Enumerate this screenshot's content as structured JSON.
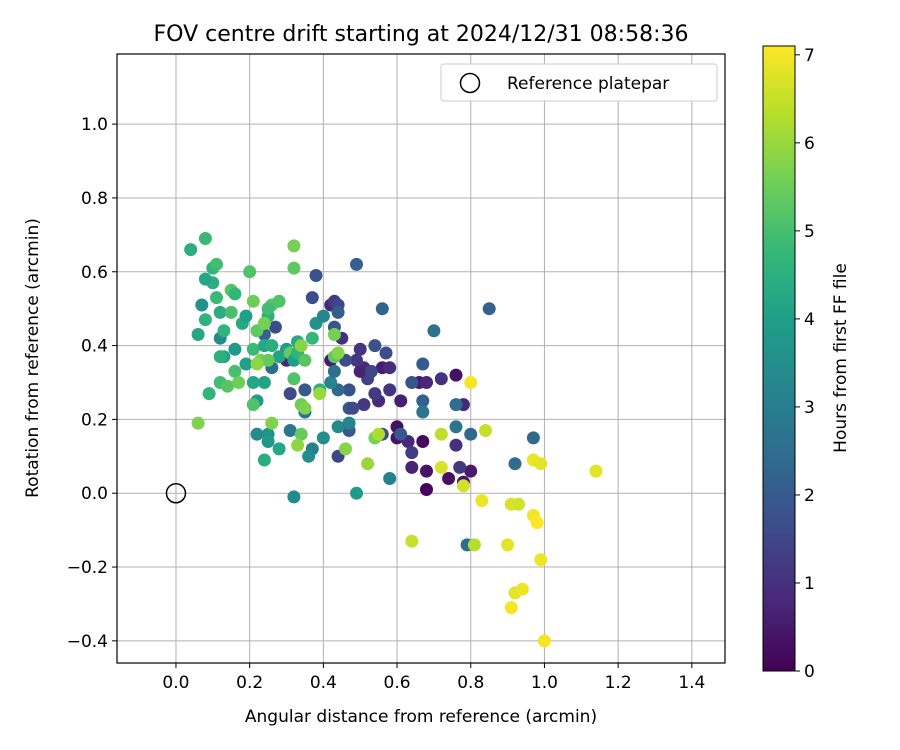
{
  "chart_data": {
    "type": "scatter",
    "title": "FOV centre drift starting at 2024/12/31 08:58:36",
    "xlabel": "Angular distance from reference (arcmin)",
    "ylabel": "Rotation from reference (arcmin)",
    "xlim": [
      -0.16,
      1.49
    ],
    "ylim": [
      -0.46,
      1.19
    ],
    "xticks": [
      0.0,
      0.2,
      0.4,
      0.6,
      0.8,
      1.0,
      1.2,
      1.4
    ],
    "xtick_labels": [
      "0.0",
      "0.2",
      "0.4",
      "0.6",
      "0.8",
      "1.0",
      "1.2",
      "1.4"
    ],
    "yticks": [
      -0.4,
      -0.2,
      0.0,
      0.2,
      0.4,
      0.6,
      0.8,
      1.0
    ],
    "ytick_labels": [
      "−0.4",
      "−0.2",
      "0.0",
      "0.2",
      "0.4",
      "0.6",
      "0.8",
      "1.0"
    ],
    "grid": true,
    "legend": {
      "placement": "top-right",
      "entries": [
        "Reference platepar"
      ]
    },
    "reference_point": {
      "name": "Reference platepar",
      "x": 0.0,
      "y": 0.0
    },
    "colorbar": {
      "label": "Hours from first FF file",
      "colormap": "viridis",
      "range": [
        0,
        7.1
      ],
      "ticks": [
        0,
        1,
        2,
        3,
        4,
        5,
        6,
        7
      ],
      "tick_labels": [
        "0",
        "1",
        "2",
        "3",
        "4",
        "5",
        "6",
        "7"
      ]
    },
    "points": [
      {
        "x": 0.68,
        "y": 0.01,
        "h": 0.1
      },
      {
        "x": 0.67,
        "y": 0.14,
        "h": 0.2
      },
      {
        "x": 0.74,
        "y": 0.04,
        "h": 0.3
      },
      {
        "x": 0.78,
        "y": 0.03,
        "h": 0.4
      },
      {
        "x": 0.8,
        "y": 0.06,
        "h": 0.5
      },
      {
        "x": 0.68,
        "y": 0.06,
        "h": 0.4
      },
      {
        "x": 0.64,
        "y": 0.07,
        "h": 0.7
      },
      {
        "x": 0.63,
        "y": 0.14,
        "h": 0.8
      },
      {
        "x": 0.6,
        "y": 0.15,
        "h": 0.4
      },
      {
        "x": 0.6,
        "y": 0.18,
        "h": 0.3
      },
      {
        "x": 0.61,
        "y": 0.25,
        "h": 0.6
      },
      {
        "x": 0.66,
        "y": 0.3,
        "h": 0.5
      },
      {
        "x": 0.68,
        "y": 0.3,
        "h": 0.8
      },
      {
        "x": 0.72,
        "y": 0.31,
        "h": 1.0
      },
      {
        "x": 0.76,
        "y": 0.32,
        "h": 0.3
      },
      {
        "x": 0.78,
        "y": 0.24,
        "h": 0.8
      },
      {
        "x": 0.76,
        "y": 0.13,
        "h": 1.0
      },
      {
        "x": 0.77,
        "y": 0.07,
        "h": 1.2
      },
      {
        "x": 0.56,
        "y": 0.34,
        "h": 0.6
      },
      {
        "x": 0.58,
        "y": 0.34,
        "h": 0.9
      },
      {
        "x": 0.58,
        "y": 0.28,
        "h": 1.1
      },
      {
        "x": 0.55,
        "y": 0.25,
        "h": 0.8
      },
      {
        "x": 0.54,
        "y": 0.27,
        "h": 1.2
      },
      {
        "x": 0.52,
        "y": 0.31,
        "h": 1.4
      },
      {
        "x": 0.51,
        "y": 0.34,
        "h": 0.9
      },
      {
        "x": 0.5,
        "y": 0.39,
        "h": 1.1
      },
      {
        "x": 0.5,
        "y": 0.33,
        "h": 0.7
      },
      {
        "x": 0.53,
        "y": 0.33,
        "h": 1.5
      },
      {
        "x": 0.54,
        "y": 0.4,
        "h": 1.8
      },
      {
        "x": 0.57,
        "y": 0.38,
        "h": 1.6
      },
      {
        "x": 0.49,
        "y": 0.36,
        "h": 1.2
      },
      {
        "x": 0.46,
        "y": 0.36,
        "h": 1.7
      },
      {
        "x": 0.45,
        "y": 0.42,
        "h": 1.0
      },
      {
        "x": 0.42,
        "y": 0.36,
        "h": 0.5
      },
      {
        "x": 0.42,
        "y": 0.51,
        "h": 0.8
      },
      {
        "x": 0.43,
        "y": 0.52,
        "h": 1.3
      },
      {
        "x": 0.44,
        "y": 0.51,
        "h": 1.5
      },
      {
        "x": 0.44,
        "y": 0.49,
        "h": 2.1
      },
      {
        "x": 0.43,
        "y": 0.45,
        "h": 1.9
      },
      {
        "x": 0.47,
        "y": 0.23,
        "h": 2.0
      },
      {
        "x": 0.47,
        "y": 0.28,
        "h": 1.8
      },
      {
        "x": 0.51,
        "y": 0.24,
        "h": 1.2
      },
      {
        "x": 0.48,
        "y": 0.23,
        "h": 1.6
      },
      {
        "x": 0.44,
        "y": 0.28,
        "h": 2.4
      },
      {
        "x": 0.44,
        "y": 0.1,
        "h": 1.5
      },
      {
        "x": 0.47,
        "y": 0.17,
        "h": 2.0
      },
      {
        "x": 0.56,
        "y": 0.16,
        "h": 1.7
      },
      {
        "x": 0.61,
        "y": 0.16,
        "h": 2.0
      },
      {
        "x": 0.64,
        "y": 0.11,
        "h": 1.3
      },
      {
        "x": 0.64,
        "y": 0.3,
        "h": 1.9
      },
      {
        "x": 0.67,
        "y": 0.35,
        "h": 2.0
      },
      {
        "x": 0.67,
        "y": 0.25,
        "h": 2.2
      },
      {
        "x": 0.67,
        "y": 0.22,
        "h": 2.8
      },
      {
        "x": 0.7,
        "y": 0.44,
        "h": 2.6
      },
      {
        "x": 0.76,
        "y": 0.24,
        "h": 2.5
      },
      {
        "x": 0.76,
        "y": 0.18,
        "h": 2.8
      },
      {
        "x": 0.8,
        "y": 0.16,
        "h": 2.4
      },
      {
        "x": 0.85,
        "y": 0.5,
        "h": 2.2
      },
      {
        "x": 0.92,
        "y": 0.08,
        "h": 2.5
      },
      {
        "x": 0.97,
        "y": 0.15,
        "h": 2.4
      },
      {
        "x": 0.79,
        "y": -0.14,
        "h": 2.5
      },
      {
        "x": 0.49,
        "y": 0.62,
        "h": 2.2
      },
      {
        "x": 0.56,
        "y": 0.5,
        "h": 2.3
      },
      {
        "x": 0.38,
        "y": 0.59,
        "h": 1.8
      },
      {
        "x": 0.37,
        "y": 0.53,
        "h": 1.7
      },
      {
        "x": 0.33,
        "y": 0.41,
        "h": 1.3
      },
      {
        "x": 0.3,
        "y": 0.36,
        "h": 0.8
      },
      {
        "x": 0.31,
        "y": 0.27,
        "h": 1.6
      },
      {
        "x": 0.35,
        "y": 0.28,
        "h": 2.0
      },
      {
        "x": 0.35,
        "y": 0.22,
        "h": 2.7
      },
      {
        "x": 0.37,
        "y": 0.12,
        "h": 3.0
      },
      {
        "x": 0.31,
        "y": 0.17,
        "h": 2.8
      },
      {
        "x": 0.58,
        "y": 0.04,
        "h": 3.1
      },
      {
        "x": 0.49,
        "y": 0.0,
        "h": 3.9
      },
      {
        "x": 0.32,
        "y": -0.01,
        "h": 3.4
      },
      {
        "x": 0.26,
        "y": 0.34,
        "h": 2.5
      },
      {
        "x": 0.27,
        "y": 0.45,
        "h": 1.7
      },
      {
        "x": 0.24,
        "y": 0.43,
        "h": 2.2
      },
      {
        "x": 0.4,
        "y": 0.15,
        "h": 3.5
      },
      {
        "x": 0.42,
        "y": 0.3,
        "h": 3.2
      },
      {
        "x": 0.43,
        "y": 0.33,
        "h": 2.6
      },
      {
        "x": 0.38,
        "y": 0.46,
        "h": 3.6
      },
      {
        "x": 0.4,
        "y": 0.48,
        "h": 3.3
      },
      {
        "x": 0.44,
        "y": 0.18,
        "h": 3.4
      },
      {
        "x": 0.36,
        "y": 0.1,
        "h": 3.5
      },
      {
        "x": 0.47,
        "y": 0.19,
        "h": 3.2
      },
      {
        "x": 0.22,
        "y": 0.16,
        "h": 3.4
      },
      {
        "x": 0.25,
        "y": 0.16,
        "h": 3.6
      },
      {
        "x": 0.25,
        "y": 0.14,
        "h": 3.8
      },
      {
        "x": 0.28,
        "y": 0.12,
        "h": 4.2
      },
      {
        "x": 0.24,
        "y": 0.09,
        "h": 4.4
      },
      {
        "x": 0.22,
        "y": 0.25,
        "h": 3.9
      },
      {
        "x": 0.24,
        "y": 0.3,
        "h": 4.1
      },
      {
        "x": 0.21,
        "y": 0.3,
        "h": 4.2
      },
      {
        "x": 0.19,
        "y": 0.35,
        "h": 4.0
      },
      {
        "x": 0.16,
        "y": 0.39,
        "h": 3.8
      },
      {
        "x": 0.13,
        "y": 0.37,
        "h": 4.1
      },
      {
        "x": 0.12,
        "y": 0.42,
        "h": 3.4
      },
      {
        "x": 0.13,
        "y": 0.44,
        "h": 4.6
      },
      {
        "x": 0.12,
        "y": 0.49,
        "h": 4.4
      },
      {
        "x": 0.11,
        "y": 0.53,
        "h": 4.8
      },
      {
        "x": 0.1,
        "y": 0.57,
        "h": 4.4
      },
      {
        "x": 0.08,
        "y": 0.58,
        "h": 4.2
      },
      {
        "x": 0.1,
        "y": 0.61,
        "h": 4.6
      },
      {
        "x": 0.11,
        "y": 0.62,
        "h": 4.9
      },
      {
        "x": 0.04,
        "y": 0.66,
        "h": 4.4
      },
      {
        "x": 0.08,
        "y": 0.69,
        "h": 4.8
      },
      {
        "x": 0.07,
        "y": 0.51,
        "h": 3.6
      },
      {
        "x": 0.06,
        "y": 0.43,
        "h": 4.2
      },
      {
        "x": 0.08,
        "y": 0.47,
        "h": 4.6
      },
      {
        "x": 0.12,
        "y": 0.37,
        "h": 4.5
      },
      {
        "x": 0.12,
        "y": 0.3,
        "h": 4.9
      },
      {
        "x": 0.14,
        "y": 0.29,
        "h": 5.2
      },
      {
        "x": 0.16,
        "y": 0.33,
        "h": 5.0
      },
      {
        "x": 0.17,
        "y": 0.3,
        "h": 5.5
      },
      {
        "x": 0.09,
        "y": 0.27,
        "h": 4.6
      },
      {
        "x": 0.06,
        "y": 0.19,
        "h": 5.7
      },
      {
        "x": 0.15,
        "y": 0.49,
        "h": 5.0
      },
      {
        "x": 0.15,
        "y": 0.55,
        "h": 5.2
      },
      {
        "x": 0.16,
        "y": 0.54,
        "h": 4.7
      },
      {
        "x": 0.18,
        "y": 0.46,
        "h": 4.3
      },
      {
        "x": 0.19,
        "y": 0.48,
        "h": 4.0
      },
      {
        "x": 0.2,
        "y": 0.6,
        "h": 5.1
      },
      {
        "x": 0.21,
        "y": 0.52,
        "h": 5.5
      },
      {
        "x": 0.22,
        "y": 0.44,
        "h": 5.3
      },
      {
        "x": 0.21,
        "y": 0.39,
        "h": 4.8
      },
      {
        "x": 0.23,
        "y": 0.36,
        "h": 5.6
      },
      {
        "x": 0.24,
        "y": 0.4,
        "h": 4.2
      },
      {
        "x": 0.25,
        "y": 0.48,
        "h": 4.5
      },
      {
        "x": 0.26,
        "y": 0.51,
        "h": 5.2
      },
      {
        "x": 0.25,
        "y": 0.5,
        "h": 4.9
      },
      {
        "x": 0.24,
        "y": 0.46,
        "h": 5.6
      },
      {
        "x": 0.26,
        "y": 0.4,
        "h": 4.4
      },
      {
        "x": 0.28,
        "y": 0.37,
        "h": 4.1
      },
      {
        "x": 0.28,
        "y": 0.52,
        "h": 5.1
      },
      {
        "x": 0.3,
        "y": 0.39,
        "h": 3.9
      },
      {
        "x": 0.31,
        "y": 0.38,
        "h": 5.4
      },
      {
        "x": 0.32,
        "y": 0.36,
        "h": 4.0
      },
      {
        "x": 0.33,
        "y": 0.38,
        "h": 4.6
      },
      {
        "x": 0.33,
        "y": 0.41,
        "h": 4.3
      },
      {
        "x": 0.34,
        "y": 0.4,
        "h": 5.8
      },
      {
        "x": 0.32,
        "y": 0.61,
        "h": 5.3
      },
      {
        "x": 0.32,
        "y": 0.67,
        "h": 5.6
      },
      {
        "x": 0.35,
        "y": 0.36,
        "h": 5.2
      },
      {
        "x": 0.34,
        "y": 0.24,
        "h": 5.5
      },
      {
        "x": 0.35,
        "y": 0.23,
        "h": 5.7
      },
      {
        "x": 0.34,
        "y": 0.16,
        "h": 5.4
      },
      {
        "x": 0.33,
        "y": 0.13,
        "h": 5.9
      },
      {
        "x": 0.32,
        "y": 0.31,
        "h": 5.1
      },
      {
        "x": 0.37,
        "y": 0.42,
        "h": 4.7
      },
      {
        "x": 0.39,
        "y": 0.28,
        "h": 4.5
      },
      {
        "x": 0.39,
        "y": 0.27,
        "h": 6.0
      },
      {
        "x": 0.43,
        "y": 0.43,
        "h": 5.6
      },
      {
        "x": 0.43,
        "y": 0.37,
        "h": 5.3
      },
      {
        "x": 0.44,
        "y": 0.38,
        "h": 5.8
      },
      {
        "x": 0.21,
        "y": 0.24,
        "h": 5.1
      },
      {
        "x": 0.25,
        "y": 0.36,
        "h": 5.4
      },
      {
        "x": 0.26,
        "y": 0.19,
        "h": 5.7
      },
      {
        "x": 0.22,
        "y": 0.35,
        "h": 5.9
      },
      {
        "x": 0.46,
        "y": 0.12,
        "h": 5.8
      },
      {
        "x": 0.52,
        "y": 0.08,
        "h": 6.0
      },
      {
        "x": 0.54,
        "y": 0.15,
        "h": 5.6
      },
      {
        "x": 0.55,
        "y": 0.16,
        "h": 6.2
      },
      {
        "x": 0.64,
        "y": -0.13,
        "h": 6.5
      },
      {
        "x": 0.72,
        "y": 0.07,
        "h": 6.7
      },
      {
        "x": 0.72,
        "y": 0.16,
        "h": 6.4
      },
      {
        "x": 0.78,
        "y": 0.02,
        "h": 6.6
      },
      {
        "x": 0.8,
        "y": 0.3,
        "h": 7.0
      },
      {
        "x": 0.81,
        "y": -0.14,
        "h": 6.3
      },
      {
        "x": 0.84,
        "y": 0.17,
        "h": 6.5
      },
      {
        "x": 0.83,
        "y": -0.02,
        "h": 6.9
      },
      {
        "x": 0.9,
        "y": -0.14,
        "h": 6.8
      },
      {
        "x": 0.91,
        "y": -0.03,
        "h": 6.7
      },
      {
        "x": 0.93,
        "y": -0.03,
        "h": 6.6
      },
      {
        "x": 0.91,
        "y": -0.31,
        "h": 7.0
      },
      {
        "x": 0.92,
        "y": -0.27,
        "h": 6.8
      },
      {
        "x": 0.94,
        "y": -0.26,
        "h": 6.9
      },
      {
        "x": 0.97,
        "y": -0.06,
        "h": 7.0
      },
      {
        "x": 0.98,
        "y": -0.08,
        "h": 7.1
      },
      {
        "x": 0.97,
        "y": 0.09,
        "h": 6.9
      },
      {
        "x": 0.99,
        "y": 0.08,
        "h": 6.8
      },
      {
        "x": 0.99,
        "y": -0.18,
        "h": 6.9
      },
      {
        "x": 1.0,
        "y": -0.4,
        "h": 7.0
      },
      {
        "x": 1.14,
        "y": 0.06,
        "h": 6.8
      }
    ]
  }
}
